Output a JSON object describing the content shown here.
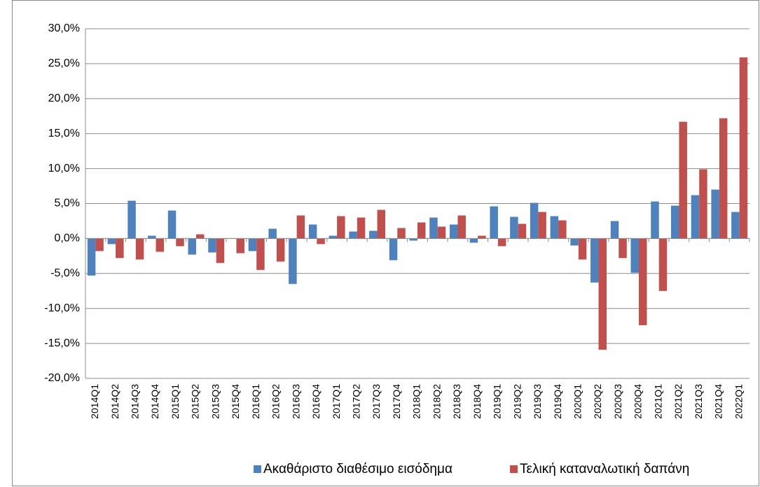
{
  "chart_data": {
    "type": "bar",
    "categories": [
      "2014Q1",
      "2014Q2",
      "2014Q3",
      "2014Q4",
      "2015Q1",
      "2015Q2",
      "2015Q3",
      "2015Q4",
      "2016Q1",
      "2016Q2",
      "2016Q3",
      "2016Q4",
      "2017Q1",
      "2017Q2",
      "2017Q3",
      "2017Q4",
      "2018Q1",
      "2018Q2",
      "2018Q3",
      "2018Q4",
      "2019Q1",
      "2019Q2",
      "2019Q3",
      "2019Q4",
      "2020Q1",
      "2020Q2",
      "2020Q3",
      "2020Q4",
      "2021Q1",
      "2021Q2",
      "2021Q3",
      "2021Q4",
      "2022Q1"
    ],
    "series": [
      {
        "name": "Ακαθάριστο διαθέσιμο εισόδημα",
        "color": "#4f81bd",
        "values": [
          -5.3,
          -0.8,
          5.4,
          0.4,
          4.0,
          -2.3,
          -2.0,
          0,
          -1.8,
          1.4,
          -6.5,
          2.0,
          0.4,
          1.0,
          1.1,
          -3.1,
          -0.3,
          3.0,
          2.0,
          -0.6,
          4.6,
          3.1,
          5.1,
          3.2,
          -1.0,
          -6.3,
          2.5,
          -4.9,
          5.3,
          4.7,
          6.2,
          7.0,
          3.8
        ]
      },
      {
        "name": "Τελική καταναλωτική δαπάνη",
        "color": "#c0504d",
        "values": [
          -1.8,
          -2.8,
          -3.0,
          -1.9,
          -1.1,
          0.6,
          -3.5,
          -2.1,
          -4.5,
          -3.3,
          3.3,
          -0.8,
          3.2,
          3.0,
          4.1,
          1.5,
          2.3,
          1.7,
          3.3,
          0.4,
          -1.1,
          2.1,
          3.8,
          2.6,
          -3.0,
          -15.9,
          -2.8,
          -12.4,
          -7.5,
          16.7,
          9.9,
          17.2,
          25.9
        ]
      }
    ],
    "ylim": [
      -20,
      30
    ],
    "yticks": [
      {
        "value": -20,
        "label": "-20,0%"
      },
      {
        "value": -15,
        "label": "-15,0%"
      },
      {
        "value": -10,
        "label": "-10,0%"
      },
      {
        "value": -5,
        "label": "-5,0%"
      },
      {
        "value": 0,
        "label": "0,0%"
      },
      {
        "value": 5,
        "label": "5,0%"
      },
      {
        "value": 10,
        "label": "10,0%"
      },
      {
        "value": 15,
        "label": "15,0%"
      },
      {
        "value": 20,
        "label": "20,0%"
      },
      {
        "value": 25,
        "label": "25,0%"
      },
      {
        "value": 30,
        "label": "30,0%"
      }
    ],
    "grid": true,
    "legend": "bottom"
  }
}
